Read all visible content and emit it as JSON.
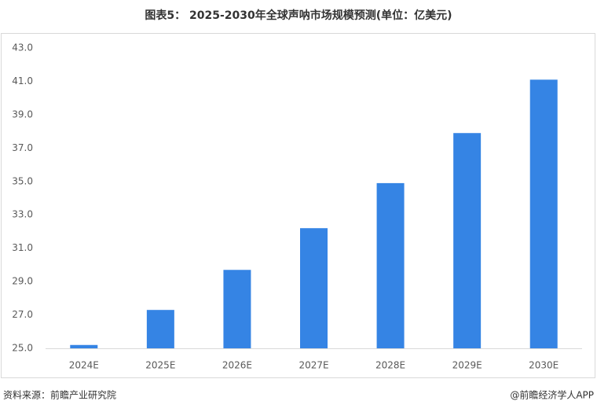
{
  "chart_data": {
    "type": "bar",
    "title": "图表5： 2025-2030年全球声呐市场规模预测(单位：亿美元)",
    "categories": [
      "2024E",
      "2025E",
      "2026E",
      "2027E",
      "2028E",
      "2029E",
      "2030E"
    ],
    "values": [
      25.2,
      27.3,
      29.7,
      32.2,
      34.9,
      37.9,
      41.1
    ],
    "color": "#3584e4",
    "ylim": [
      25,
      43
    ],
    "yticks": [
      {
        "value": 25,
        "label": "25.0"
      },
      {
        "value": 27,
        "label": "27.0"
      },
      {
        "value": 29,
        "label": "29.0"
      },
      {
        "value": 31,
        "label": "31.0"
      },
      {
        "value": 33,
        "label": "33.0"
      },
      {
        "value": 35,
        "label": "35.0"
      },
      {
        "value": 37,
        "label": "37.0"
      },
      {
        "value": 39,
        "label": "39.0"
      },
      {
        "value": 41,
        "label": "41.0"
      },
      {
        "value": 43,
        "label": "43.0"
      }
    ],
    "grid": false,
    "source": "资料来源：前瞻产业研究院",
    "credit": "@前瞻经济学人APP"
  }
}
